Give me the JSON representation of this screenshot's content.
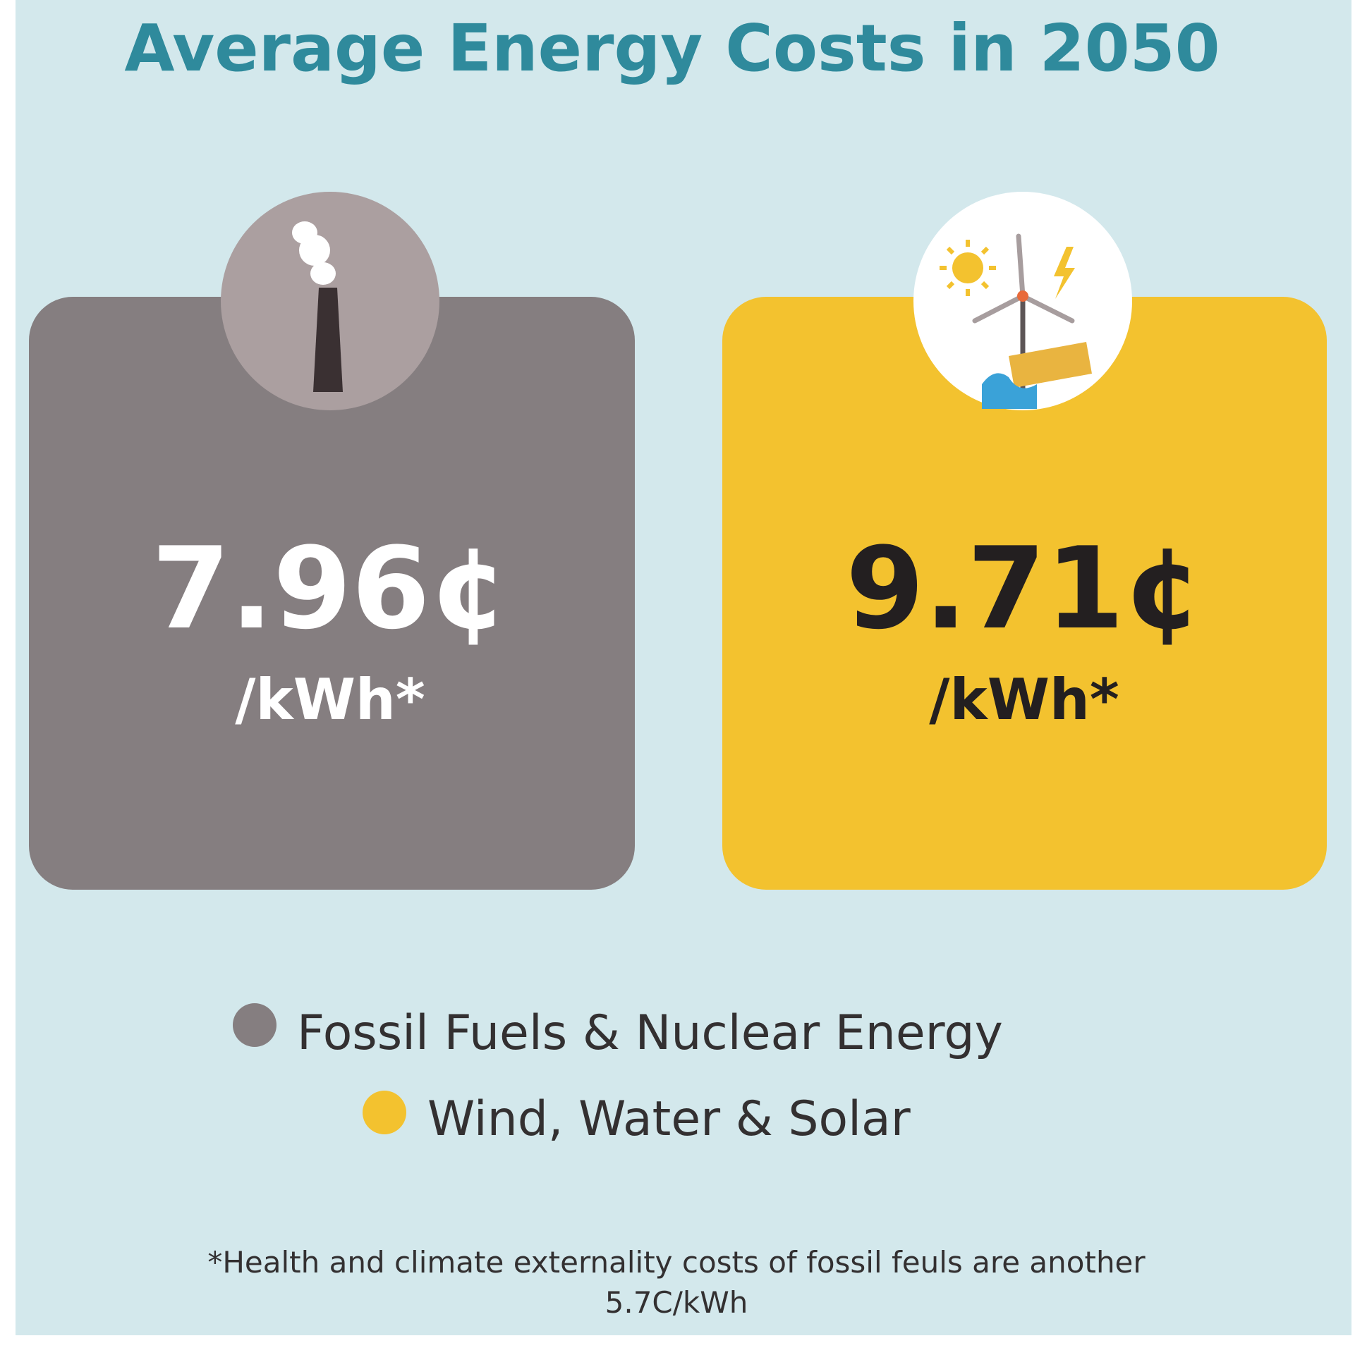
{
  "title": "Average Energy Costs in 2050",
  "cards": [
    {
      "value": "7.96¢",
      "unit": "/kWh*"
    },
    {
      "value": "9.71¢",
      "unit": "/kWh*"
    }
  ],
  "legend": [
    "Fossil Fuels & Nuclear Energy",
    "Wind, Water & Solar"
  ],
  "footnote": [
    "*Health and climate externality costs of fossil feuls are another",
    "5.7C/kWh"
  ]
}
